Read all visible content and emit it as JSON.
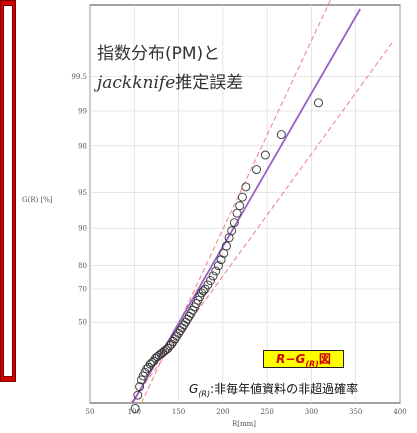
{
  "chart_data": {
    "type": "scatter",
    "title_line1": "指数分布(PM)と",
    "title_line2_italic": "jackknife",
    "title_line2_rest": "推定誤差",
    "xlabel": "R[mm]",
    "ylabel": "G(R) [%]",
    "xlim": [
      50,
      400
    ],
    "y_ticks": [
      "50",
      "70",
      "80",
      "90",
      "95",
      "98",
      "99",
      "99.5"
    ],
    "x_ticks": [
      "50",
      "100",
      "150",
      "200",
      "250",
      "300",
      "350",
      "400"
    ],
    "y_scale": "gumbel-probability",
    "grid": true,
    "fit_line": {
      "x": [
        98,
        355
      ],
      "y": [
        3,
        99.87
      ]
    },
    "upper_band": {
      "x": [
        108,
        342
      ],
      "y": [
        3,
        99.95
      ]
    },
    "lower_band": {
      "x": [
        96,
        392
      ],
      "y": [
        3,
        99.75
      ]
    },
    "points": {
      "x": [
        101,
        104,
        106,
        108,
        110,
        112,
        114,
        116,
        118,
        120,
        122,
        124,
        126,
        128,
        130,
        132,
        134,
        136,
        138,
        140,
        142,
        144,
        146,
        148,
        150,
        152,
        154,
        156,
        158,
        160,
        162,
        164,
        166,
        168,
        170,
        172,
        174,
        176,
        178,
        180,
        183,
        186,
        189,
        192,
        195,
        198,
        201,
        204,
        207,
        210,
        213,
        216,
        219,
        222,
        226,
        238,
        248,
        266,
        308
      ],
      "y": [
        2,
        5,
        8,
        11,
        13,
        15,
        17,
        18,
        20,
        21,
        22,
        24,
        25,
        26,
        27,
        28,
        29,
        30,
        31,
        33,
        34,
        36,
        38,
        40,
        42,
        44,
        46,
        48,
        50,
        52,
        54,
        56,
        58,
        60,
        62,
        64,
        66,
        68,
        69,
        70,
        72,
        74,
        76,
        78,
        80,
        82,
        84,
        86,
        88,
        89.5,
        91,
        92.5,
        93.5,
        94.5,
        95.5,
        96.8,
        97.6,
        98.4,
        99.15
      ]
    }
  },
  "legend": {
    "box_prefix": "R−G",
    "box_sub": "(R)",
    "box_suffix": "図",
    "note_prefix": "G",
    "note_sub": "(R)",
    "note_suffix": ":非毎年値資料の非超過確率"
  },
  "colors": {
    "fit_line": "#9c5fc6",
    "bands": "#f08a8a",
    "points": "#333333",
    "banner": "#d40000",
    "box_fill": "#ffff00"
  }
}
